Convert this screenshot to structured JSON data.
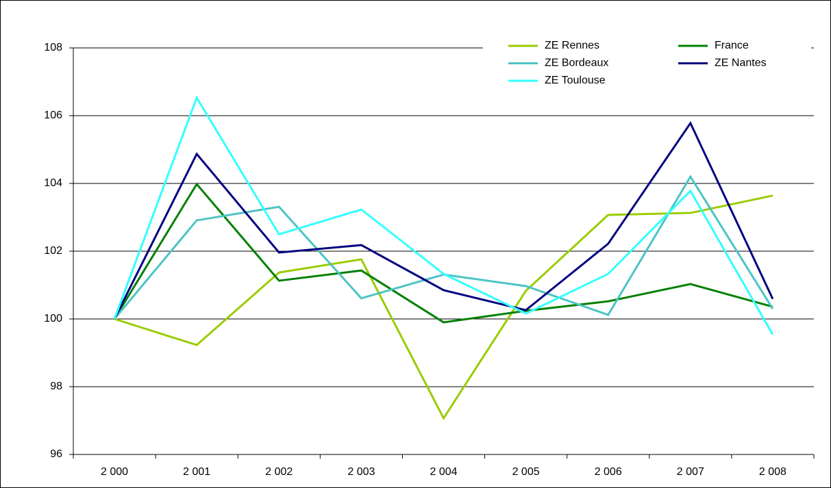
{
  "chart_data": {
    "type": "line",
    "categories": [
      "2 000",
      "2 001",
      "2 002",
      "2 003",
      "2 004",
      "2 005",
      "2 006",
      "2 007",
      "2 008"
    ],
    "series": [
      {
        "name": "ZE Rennes",
        "color": "#99cc00",
        "values": [
          100,
          99.23,
          101.37,
          101.76,
          97.07,
          100.83,
          103.07,
          103.13,
          103.64
        ]
      },
      {
        "name": "France",
        "color": "#008000",
        "values": [
          100,
          103.98,
          101.13,
          101.43,
          99.9,
          100.24,
          100.52,
          101.03,
          100.36
        ]
      },
      {
        "name": "ZE Bordeaux",
        "color": "#4cc4c4",
        "values": [
          100,
          102.91,
          103.31,
          100.61,
          101.31,
          100.97,
          100.12,
          104.2,
          100.3
        ]
      },
      {
        "name": "ZE Nantes",
        "color": "#000080",
        "values": [
          100,
          104.87,
          101.96,
          102.18,
          100.85,
          100.26,
          102.22,
          105.78,
          100.59
        ]
      },
      {
        "name": "ZE Toulouse",
        "color": "#33ffff",
        "values": [
          100,
          106.53,
          102.5,
          103.23,
          101.33,
          100.16,
          101.33,
          103.78,
          99.54
        ]
      }
    ],
    "ylim": [
      96,
      108
    ],
    "yticks": [
      96,
      98,
      100,
      102,
      104,
      106,
      108
    ],
    "grid": true,
    "legend": "upper right"
  }
}
